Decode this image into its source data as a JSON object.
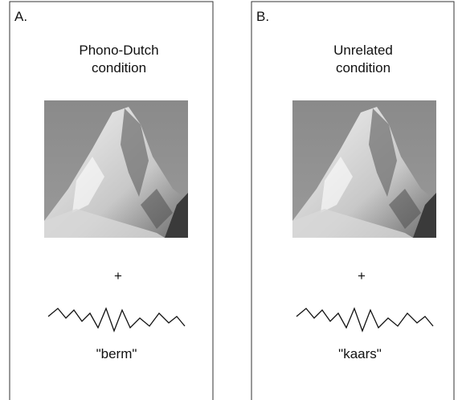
{
  "panels": [
    {
      "label": "A.",
      "title_lines": [
        "Phono-Dutch",
        "condition"
      ],
      "fixation": "+",
      "word": "\"berm\""
    },
    {
      "label": "B.",
      "title_lines": [
        "Unrelated",
        "condition"
      ],
      "fixation": "+",
      "word": "\"kaars\""
    }
  ]
}
